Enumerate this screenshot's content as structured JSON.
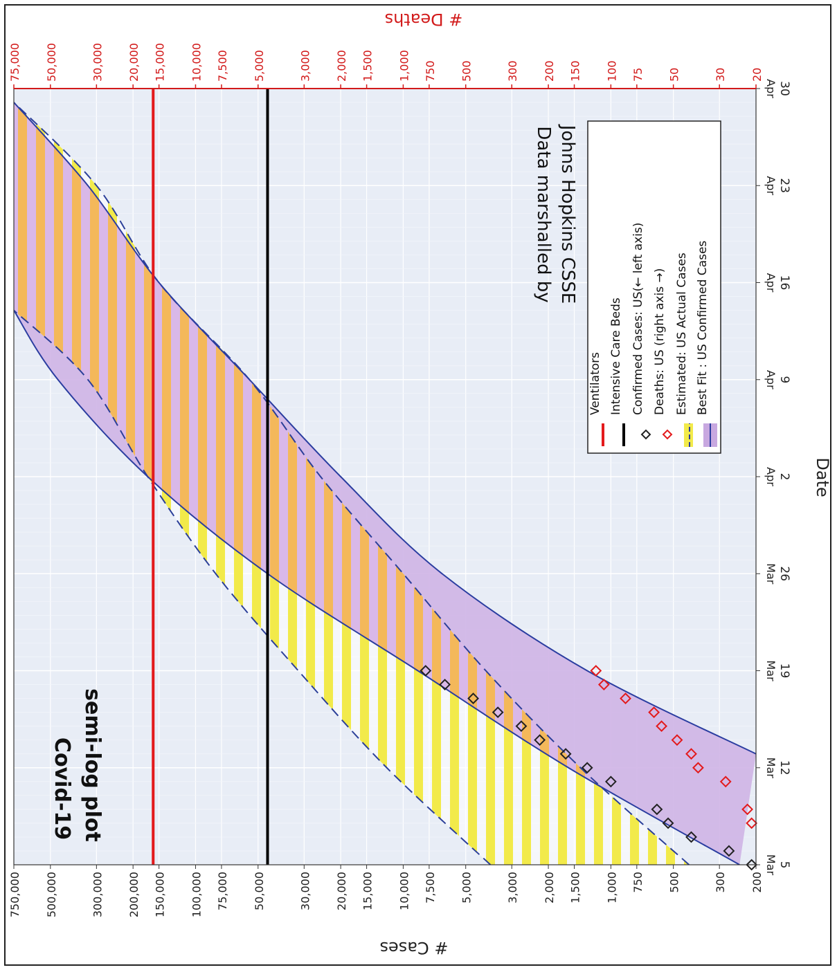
{
  "chart_data": {
    "type": "line",
    "orientation_note": "figure is rotated 90 degrees clockwise on the page",
    "annotation_title": [
      "Covid-19",
      "semi-log plot"
    ],
    "credit": [
      "Data marshalled by",
      "Johns Hopkins CSSE"
    ],
    "xlabel": "Date",
    "ylabel_left": "# Cases",
    "ylabel_right": "# Deaths",
    "y_scale": "log",
    "x_range": [
      "2020-03-05",
      "2020-04-30"
    ],
    "ylim_left": [
      200,
      750000
    ],
    "ylim_right": [
      20,
      75000
    ],
    "x_ticks": [
      {
        "date": "2020-03-05",
        "month": "Mar",
        "day": "5"
      },
      {
        "date": "2020-03-12",
        "month": "Mar",
        "day": "12"
      },
      {
        "date": "2020-03-19",
        "month": "Mar",
        "day": "19"
      },
      {
        "date": "2020-03-26",
        "month": "Mar",
        "day": "26"
      },
      {
        "date": "2020-04-02",
        "month": "Apr",
        "day": "2"
      },
      {
        "date": "2020-04-09",
        "month": "Apr",
        "day": "9"
      },
      {
        "date": "2020-04-16",
        "month": "Apr",
        "day": "16"
      },
      {
        "date": "2020-04-23",
        "month": "Apr",
        "day": "23"
      },
      {
        "date": "2020-04-30",
        "month": "Apr",
        "day": "30"
      }
    ],
    "left_ticks": [
      {
        "value": 200,
        "label": "200"
      },
      {
        "value": 300,
        "label": "300"
      },
      {
        "value": 500,
        "label": "500"
      },
      {
        "value": 750,
        "label": "750"
      },
      {
        "value": 1000,
        "label": "1,000"
      },
      {
        "value": 1500,
        "label": "1,500"
      },
      {
        "value": 2000,
        "label": "2,000"
      },
      {
        "value": 3000,
        "label": "3,000"
      },
      {
        "value": 5000,
        "label": "5,000"
      },
      {
        "value": 7500,
        "label": "7,500"
      },
      {
        "value": 10000,
        "label": "10,000"
      },
      {
        "value": 15000,
        "label": "15,000"
      },
      {
        "value": 20000,
        "label": "20,000"
      },
      {
        "value": 30000,
        "label": "30,000"
      },
      {
        "value": 50000,
        "label": "50,000"
      },
      {
        "value": 75000,
        "label": "75,000"
      },
      {
        "value": 100000,
        "label": "100,000"
      },
      {
        "value": 150000,
        "label": "150,000"
      },
      {
        "value": 200000,
        "label": "200,000"
      },
      {
        "value": 300000,
        "label": "300,000"
      },
      {
        "value": 500000,
        "label": "500,000"
      },
      {
        "value": 750000,
        "label": "750,000"
      }
    ],
    "right_ticks": [
      {
        "value": 20,
        "label": "20"
      },
      {
        "value": 30,
        "label": "30"
      },
      {
        "value": 50,
        "label": "50"
      },
      {
        "value": 75,
        "label": "75"
      },
      {
        "value": 100,
        "label": "100"
      },
      {
        "value": 150,
        "label": "150"
      },
      {
        "value": 200,
        "label": "200"
      },
      {
        "value": 300,
        "label": "300"
      },
      {
        "value": 500,
        "label": "500"
      },
      {
        "value": 750,
        "label": "750"
      },
      {
        "value": 1000,
        "label": "1,000"
      },
      {
        "value": 1500,
        "label": "1,500"
      },
      {
        "value": 2000,
        "label": "2,000"
      },
      {
        "value": 3000,
        "label": "3,000"
      },
      {
        "value": 5000,
        "label": "5,000"
      },
      {
        "value": 7500,
        "label": "7,500"
      },
      {
        "value": 10000,
        "label": "10,000"
      },
      {
        "value": 15000,
        "label": "15,000"
      },
      {
        "value": 20000,
        "label": "20,000"
      },
      {
        "value": 30000,
        "label": "30,000"
      },
      {
        "value": 50000,
        "label": "50,000"
      },
      {
        "value": 75000,
        "label": "75,000"
      }
    ],
    "hlines": [
      {
        "name": "Ventilators",
        "value": 160000,
        "color": "#e31a1c"
      },
      {
        "name": "Intensive Care Beds",
        "value": 45000,
        "color": "#000000"
      }
    ],
    "legend": {
      "placement": "right",
      "entries": [
        {
          "label": "Ventilators",
          "kind": "line",
          "color": "#e31a1c"
        },
        {
          "label": "Intensive Care Beds",
          "kind": "line",
          "color": "#000000"
        },
        {
          "label": "Confirmed Cases: US(← left axis)",
          "kind": "marker",
          "color": "#222222"
        },
        {
          "label": "Deaths: US (right axis →)",
          "kind": "marker",
          "color": "#e31a1c"
        },
        {
          "label": "Estimated: US Actual Cases",
          "kind": "band-yellow",
          "color": "#f2ea4a"
        },
        {
          "label": "Best Fit : US Confirmed Cases",
          "kind": "band-purple",
          "color": "#c8a8e0"
        }
      ]
    },
    "series": [
      {
        "name": "Confirmed Cases: US(← left axis)",
        "axis": "left",
        "marker": "diamond",
        "points": [
          {
            "date": "2020-03-05",
            "value": 210
          },
          {
            "date": "2020-03-06",
            "value": 270
          },
          {
            "date": "2020-03-07",
            "value": 410
          },
          {
            "date": "2020-03-08",
            "value": 530
          },
          {
            "date": "2020-03-09",
            "value": 600
          },
          {
            "date": "2020-03-11",
            "value": 1000
          },
          {
            "date": "2020-03-12",
            "value": 1300
          },
          {
            "date": "2020-03-13",
            "value": 1650
          },
          {
            "date": "2020-03-14",
            "value": 2200
          },
          {
            "date": "2020-03-15",
            "value": 2700
          },
          {
            "date": "2020-03-16",
            "value": 3500
          },
          {
            "date": "2020-03-17",
            "value": 4600
          },
          {
            "date": "2020-03-18",
            "value": 6300
          },
          {
            "date": "2020-03-19",
            "value": 7800
          }
        ]
      },
      {
        "name": "Deaths: US (right axis →)",
        "axis": "right",
        "marker": "diamond",
        "points": [
          {
            "date": "2020-03-08",
            "value": 21
          },
          {
            "date": "2020-03-09",
            "value": 22
          },
          {
            "date": "2020-03-11",
            "value": 28
          },
          {
            "date": "2020-03-12",
            "value": 38
          },
          {
            "date": "2020-03-13",
            "value": 41
          },
          {
            "date": "2020-03-14",
            "value": 48
          },
          {
            "date": "2020-03-15",
            "value": 57
          },
          {
            "date": "2020-03-16",
            "value": 62
          },
          {
            "date": "2020-03-17",
            "value": 85
          },
          {
            "date": "2020-03-18",
            "value": 108
          },
          {
            "date": "2020-03-19",
            "value": 118
          }
        ]
      },
      {
        "name": "Estimated: US Actual Cases",
        "axis": "left",
        "kind": "band",
        "style": "dashed",
        "upper": [
          {
            "date": "2020-03-05",
            "value": 3800
          },
          {
            "date": "2020-03-12",
            "value": 12000
          },
          {
            "date": "2020-03-19",
            "value": 32000
          },
          {
            "date": "2020-03-26",
            "value": 80000
          },
          {
            "date": "2020-04-02",
            "value": 170000
          },
          {
            "date": "2020-04-09",
            "value": 330000
          },
          {
            "date": "2020-04-14",
            "value": 750000
          }
        ],
        "lower": [
          {
            "date": "2020-03-05",
            "value": 420
          },
          {
            "date": "2020-03-12",
            "value": 1400
          },
          {
            "date": "2020-03-19",
            "value": 4000
          },
          {
            "date": "2020-03-26",
            "value": 10000
          },
          {
            "date": "2020-04-02",
            "value": 25000
          },
          {
            "date": "2020-04-09",
            "value": 55000
          },
          {
            "date": "2020-04-16",
            "value": 150000
          },
          {
            "date": "2020-04-23",
            "value": 300000
          },
          {
            "date": "2020-04-29",
            "value": 750000
          }
        ]
      },
      {
        "name": "Best Fit : US Confirmed Cases",
        "axis": "left",
        "kind": "band",
        "style": "solid",
        "upper": [
          {
            "date": "2020-03-05",
            "value": 240
          },
          {
            "date": "2020-03-12",
            "value": 1600
          },
          {
            "date": "2020-03-19",
            "value": 8500
          },
          {
            "date": "2020-03-26",
            "value": 45000
          },
          {
            "date": "2020-04-02",
            "value": 170000
          },
          {
            "date": "2020-04-09",
            "value": 460000
          },
          {
            "date": "2020-04-14",
            "value": 750000
          }
        ],
        "lower": [
          {
            "date": "2020-03-13",
            "value": 200
          },
          {
            "date": "2020-03-19",
            "value": 1300
          },
          {
            "date": "2020-03-26",
            "value": 6500
          },
          {
            "date": "2020-04-02",
            "value": 20000
          },
          {
            "date": "2020-04-09",
            "value": 55000
          },
          {
            "date": "2020-04-16",
            "value": 150000
          },
          {
            "date": "2020-04-23",
            "value": 330000
          },
          {
            "date": "2020-04-29",
            "value": 750000
          }
        ]
      }
    ]
  }
}
